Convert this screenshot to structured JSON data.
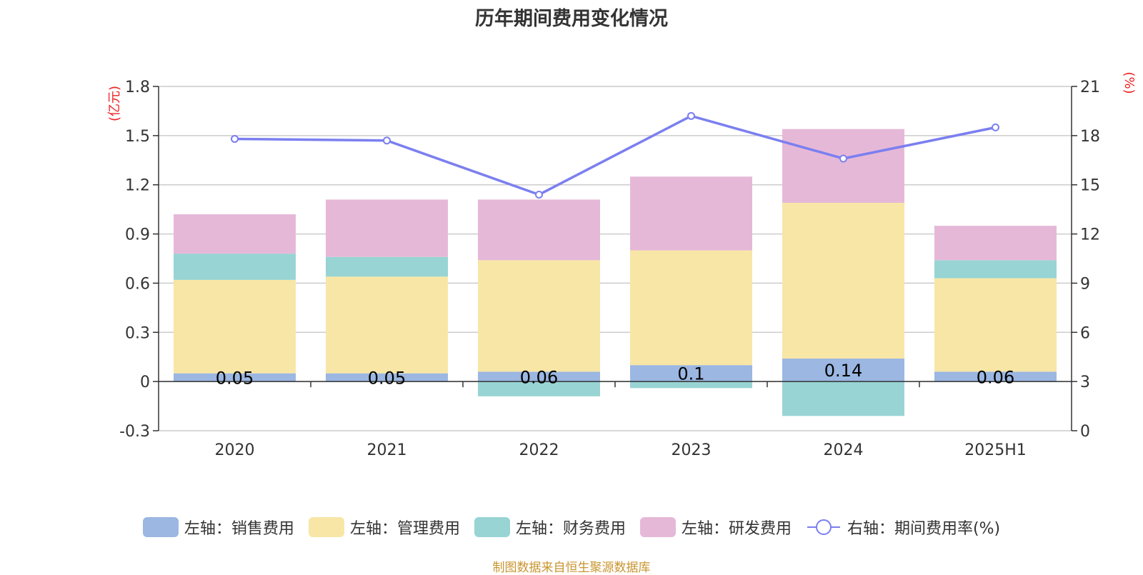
{
  "title": "历年期间费用变化情况",
  "source_note": "制图数据来自恒生聚源数据库",
  "colors": {
    "sales": "#9bb7e2",
    "admin": "#f8e6a6",
    "finance": "#98d4d4",
    "rnd": "#e6b8d8",
    "rate_line": "#7b7ff0",
    "left_unit": "#ee2222",
    "right_unit": "#ee2222",
    "source": "#c9952f"
  },
  "legend": [
    {
      "key": "sales",
      "label": "左轴：销售费用",
      "icon": "rounded-rect-swatch"
    },
    {
      "key": "admin",
      "label": "左轴：管理费用",
      "icon": "rounded-rect-swatch"
    },
    {
      "key": "finance",
      "label": "左轴：财务费用",
      "icon": "rounded-rect-swatch"
    },
    {
      "key": "rnd",
      "label": "左轴：研发费用",
      "icon": "rounded-rect-swatch"
    },
    {
      "key": "rate",
      "label": "右轴：期间费用率(%)",
      "icon": "line-circle-marker"
    }
  ],
  "chart_data": {
    "type": "bar",
    "stacked": true,
    "title": "历年期间费用变化情况",
    "categories": [
      "2020",
      "2021",
      "2022",
      "2023",
      "2024",
      "2025H1"
    ],
    "left_axis": {
      "unit": "(亿元)",
      "ylim": [
        -0.3,
        1.8
      ],
      "ticks": [
        "-0.3",
        "0",
        "0.3",
        "0.6",
        "0.9",
        "1.2",
        "1.5",
        "1.8"
      ]
    },
    "right_axis": {
      "unit": "(%)",
      "ylim": [
        0,
        21
      ],
      "ticks": [
        "0",
        "3",
        "6",
        "9",
        "12",
        "15",
        "18",
        "21"
      ]
    },
    "series": [
      {
        "name": "左轴：销售费用",
        "key": "sales",
        "axis": "left",
        "type": "bar",
        "values": [
          0.05,
          0.05,
          0.06,
          0.1,
          0.14,
          0.06
        ],
        "labels": [
          "0.05",
          "0.05",
          "0.06",
          "0.1",
          "0.14",
          "0.06"
        ]
      },
      {
        "name": "左轴：管理费用",
        "key": "admin",
        "axis": "left",
        "type": "bar",
        "values": [
          0.57,
          0.59,
          0.68,
          0.7,
          0.95,
          0.57
        ]
      },
      {
        "name": "左轴：财务费用",
        "key": "finance",
        "axis": "left",
        "type": "bar",
        "values": [
          0.16,
          0.12,
          -0.09,
          -0.04,
          -0.21,
          0.11
        ]
      },
      {
        "name": "左轴：研发费用",
        "key": "rnd",
        "axis": "left",
        "type": "bar",
        "values": [
          0.24,
          0.35,
          0.37,
          0.45,
          0.45,
          0.21
        ]
      },
      {
        "name": "右轴：期间费用率(%)",
        "key": "rate",
        "axis": "right",
        "type": "line",
        "values": [
          17.8,
          17.7,
          14.4,
          19.2,
          16.6,
          18.5
        ]
      }
    ],
    "grid": true,
    "legend_position": "bottom"
  }
}
